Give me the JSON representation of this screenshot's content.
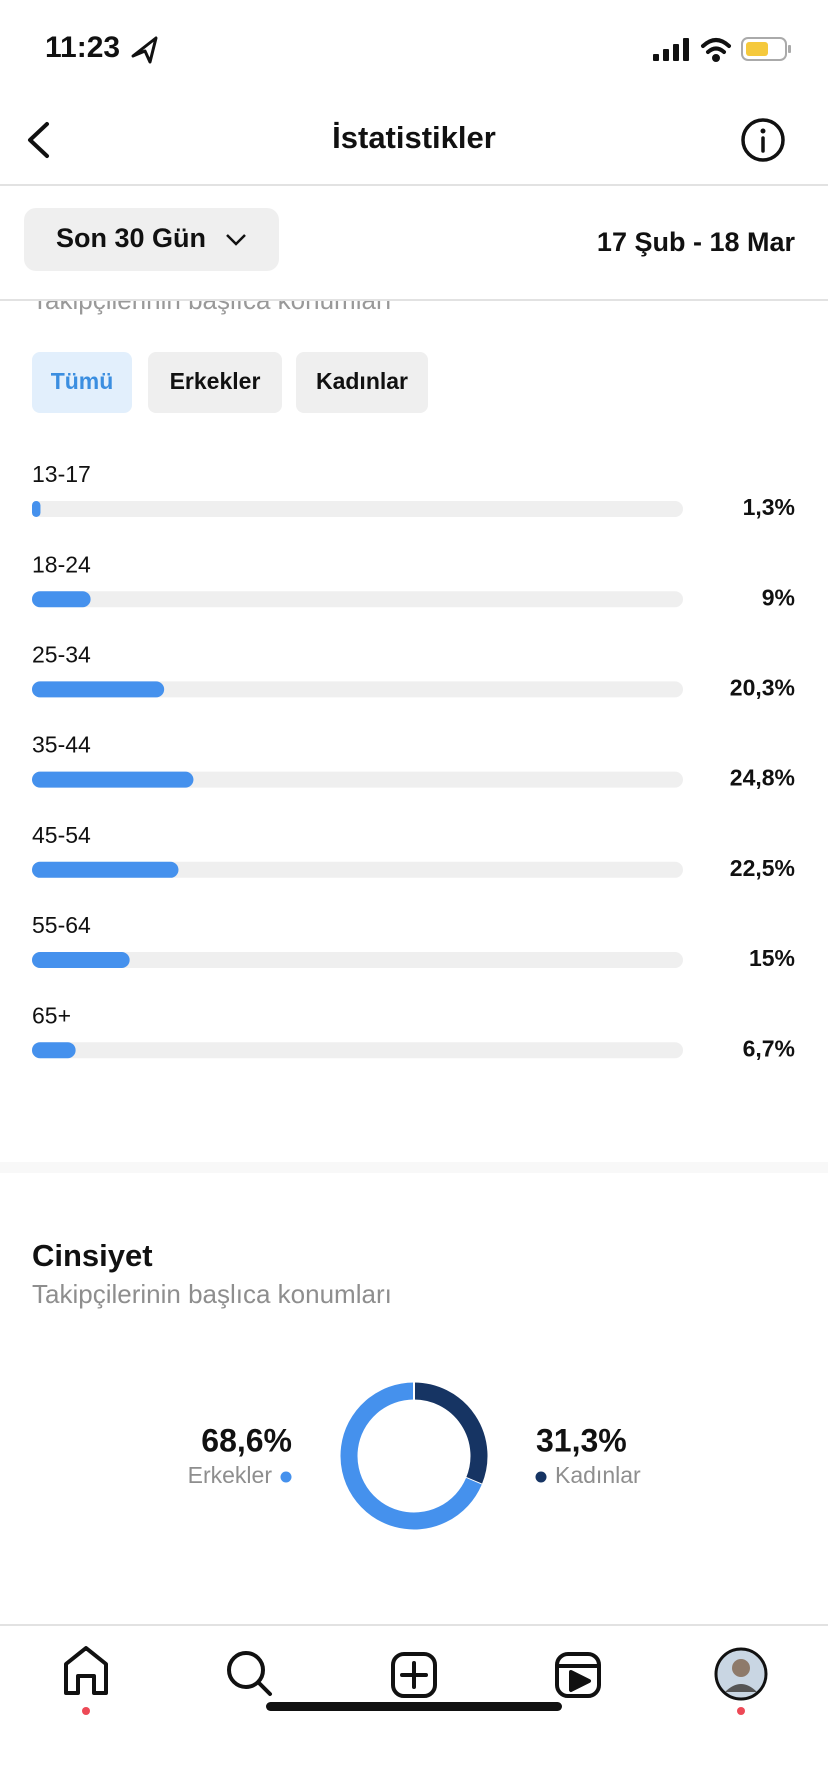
{
  "status_bar": {
    "time": "11:23"
  },
  "header": {
    "title": "İstatistikler"
  },
  "filter": {
    "period": "Son 30 Gün",
    "date_range": "17 Şub - 18 Mar"
  },
  "age_section": {
    "subtitle": "Takipçilerinin başlıca konumları",
    "tabs": [
      "Tümü",
      "Erkekler",
      "Kadınlar"
    ]
  },
  "chart_data": [
    {
      "type": "bar",
      "orientation": "horizontal",
      "categories": [
        "13-17",
        "18-24",
        "25-34",
        "35-44",
        "45-54",
        "55-64",
        "65+"
      ],
      "values": [
        1.3,
        9,
        20.3,
        24.8,
        22.5,
        15,
        6.7
      ],
      "value_labels": [
        "1,3%",
        "9%",
        "20,3%",
        "24,8%",
        "22,5%",
        "15%",
        "6,7%"
      ],
      "xlim": [
        0,
        100
      ],
      "color": "#4591ed"
    },
    {
      "type": "pie",
      "title": "Cinsiyet",
      "subtitle": "Takipçilerinin başlıca konumları",
      "categories": [
        "Erkekler",
        "Kadınlar"
      ],
      "values": [
        68.6,
        31.3
      ],
      "value_labels": [
        "68,6%",
        "31,3%"
      ],
      "colors": [
        "#4591ed",
        "#163463"
      ]
    }
  ]
}
